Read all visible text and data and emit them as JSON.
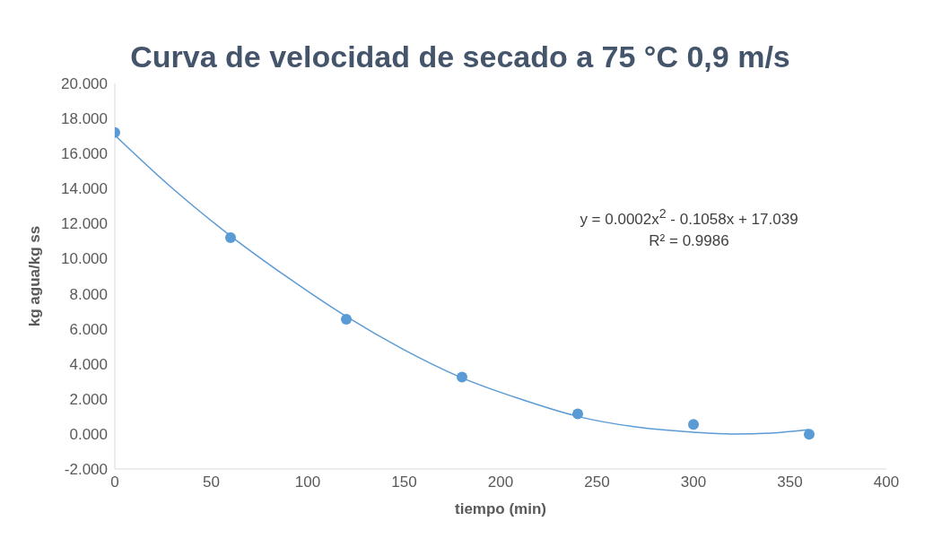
{
  "chart_data": {
    "type": "scatter",
    "title": "Curva de velocidad de secado a 75 °C 0,9 m/s",
    "xlabel": "tiempo (min)",
    "ylabel": "kg agua/kg ss",
    "series": [
      {
        "color": "#5b9bd5",
        "x": [
          0,
          60,
          120,
          180,
          240,
          300,
          360
        ],
        "values": [
          17.2,
          11.2,
          6.55,
          3.25,
          1.15,
          0.55,
          -0.02
        ]
      },
      {
        "type": "line",
        "color": "#5b9bd5",
        "marker": "none",
        "x": [
          0,
          30,
          60,
          90,
          120,
          150,
          180,
          210,
          240,
          270,
          300,
          320,
          340,
          360
        ],
        "values": [
          17.05,
          14.0,
          11.3,
          8.9,
          6.7,
          4.8,
          3.2,
          2.0,
          1.0,
          0.4,
          0.1,
          0.0,
          0.05,
          0.25
        ]
      }
    ],
    "xlim": [
      0,
      400
    ],
    "xticks": [
      0,
      50,
      100,
      150,
      200,
      250,
      300,
      350,
      400
    ],
    "ylim": [
      -2,
      20
    ],
    "yticks": [
      {
        "value": -2,
        "label": "-2.000"
      },
      {
        "value": 0,
        "label": "0.000"
      },
      {
        "value": 2,
        "label": "2.000"
      },
      {
        "value": 4,
        "label": "4.000"
      },
      {
        "value": 6,
        "label": "6.000"
      },
      {
        "value": 8,
        "label": "8.000"
      },
      {
        "value": 10,
        "label": "10.000"
      },
      {
        "value": 12,
        "label": "12.000"
      },
      {
        "value": 14,
        "label": "14.000"
      },
      {
        "value": 16,
        "label": "16.000"
      },
      {
        "value": 18,
        "label": "18.000"
      },
      {
        "value": 20,
        "label": "20.000"
      }
    ],
    "annotations": [
      "y = 0.0002x$^{2}$ - 0.1058x + 17.039",
      "R² = 0.9986"
    ],
    "marker": "circle"
  }
}
